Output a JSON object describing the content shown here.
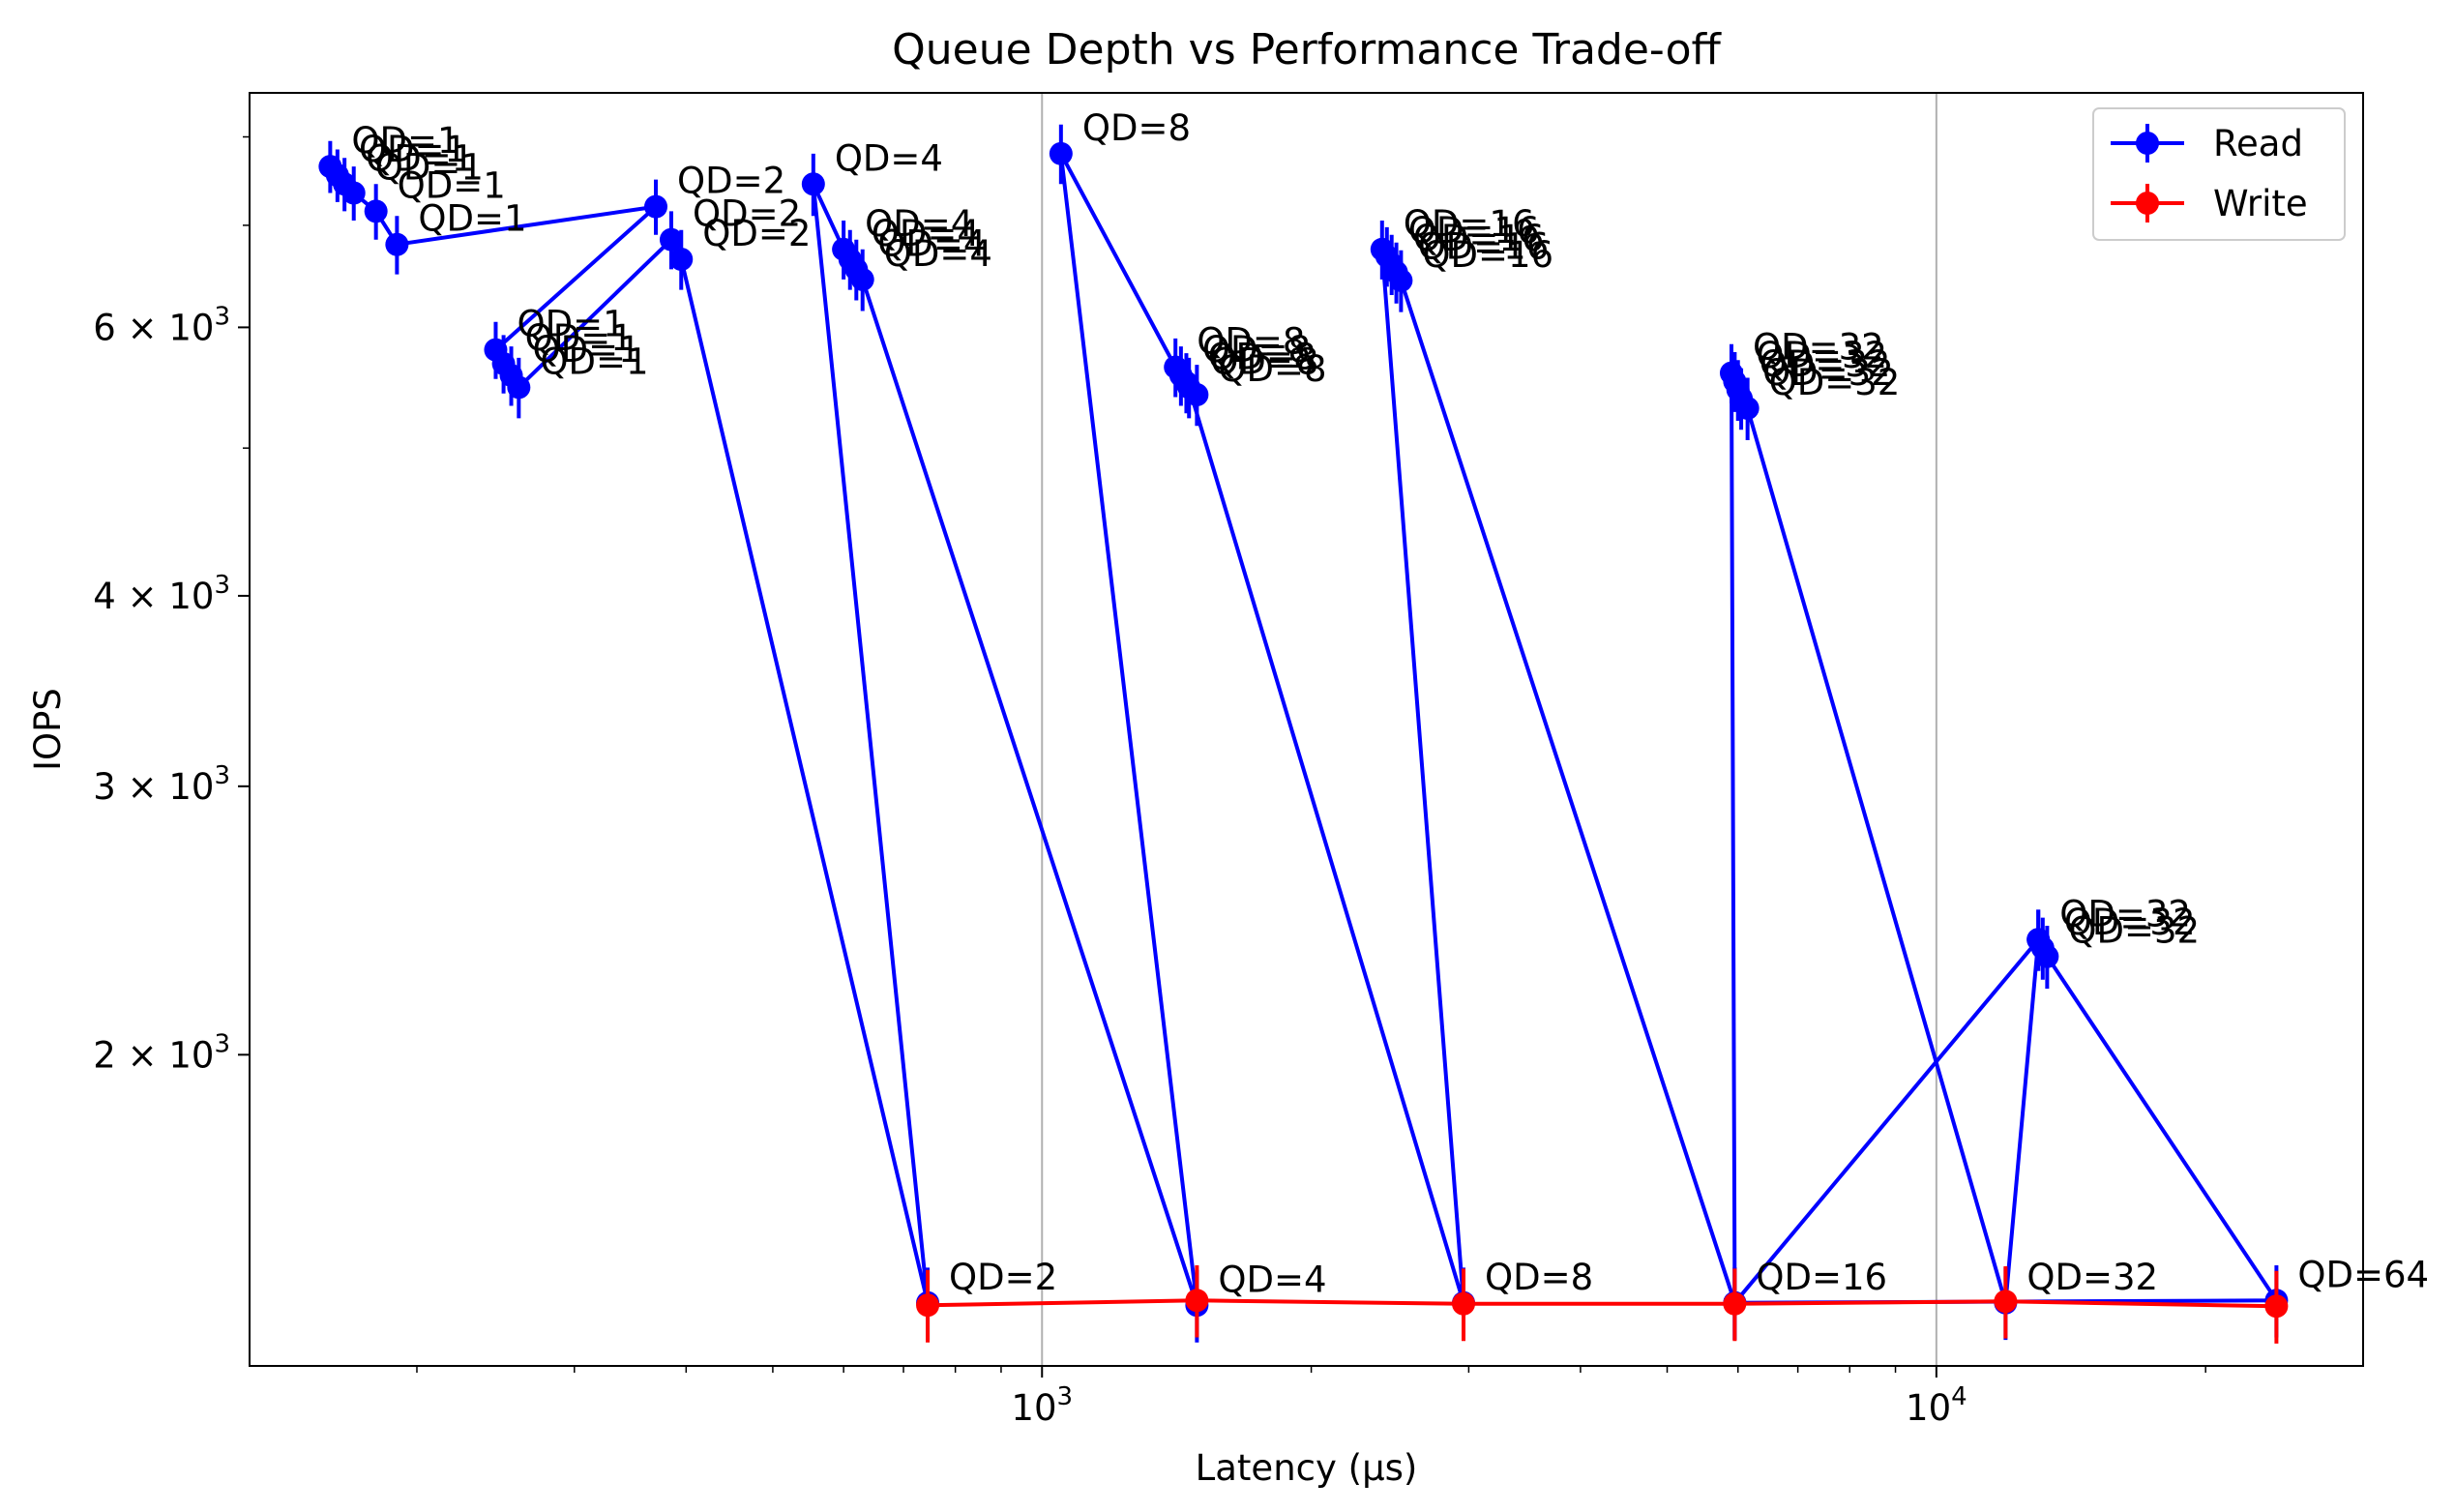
{
  "chart_data": {
    "type": "line",
    "title": "Queue Depth vs Performance Trade-off",
    "xlabel": "Latency (μs)",
    "ylabel": "IOPS",
    "xscale": "log",
    "yscale": "log",
    "xlim": [
      130,
      30000
    ],
    "ylim": [
      1250,
      8550
    ],
    "x_grid": true,
    "y_grid": false,
    "legend": "top-right",
    "x_ticks": [
      {
        "value": 1000,
        "base": "10",
        "exp": "3"
      },
      {
        "value": 10000,
        "base": "10",
        "exp": "4"
      }
    ],
    "y_ticks": [
      {
        "value": 2000,
        "mant": "2",
        "base": "10",
        "exp": "3"
      },
      {
        "value": 3000,
        "mant": "3",
        "base": "10",
        "exp": "3"
      },
      {
        "value": 4000,
        "mant": "4",
        "base": "10",
        "exp": "3"
      },
      {
        "value": 6000,
        "mant": "6",
        "base": "10",
        "exp": "3"
      }
    ],
    "times_sign": "×",
    "series": [
      {
        "name": "Read",
        "color": "#0000ff",
        "points": [
          {
            "x": 160,
            "y": 7650,
            "err": 300,
            "label": "QD=1"
          },
          {
            "x": 163,
            "y": 7550,
            "err": 300,
            "label": "QD=1"
          },
          {
            "x": 166,
            "y": 7450,
            "err": 300,
            "label": "QD=1"
          },
          {
            "x": 170,
            "y": 7350,
            "err": 300,
            "label": "QD=1"
          },
          {
            "x": 180,
            "y": 7150,
            "err": 300,
            "label": "QD=1"
          },
          {
            "x": 190,
            "y": 6800,
            "err": 300,
            "label": "QD=1"
          },
          {
            "x": 370,
            "y": 7200,
            "err": 300,
            "label": "QD=2"
          },
          {
            "x": 245,
            "y": 5800,
            "err": 250,
            "label": "QD=1"
          },
          {
            "x": 250,
            "y": 5680,
            "err": 250,
            "label": "QD=1"
          },
          {
            "x": 255,
            "y": 5580,
            "err": 250,
            "label": "QD=1"
          },
          {
            "x": 260,
            "y": 5480,
            "err": 250,
            "label": "QD=1"
          },
          {
            "x": 385,
            "y": 6850,
            "err": 300,
            "label": "QD=2"
          },
          {
            "x": 395,
            "y": 6650,
            "err": 300,
            "label": "QD=2"
          },
          {
            "x": 745,
            "y": 1375,
            "err": 75,
            "label": "QD=2"
          },
          {
            "x": 555,
            "y": 7450,
            "err": 350,
            "label": "QD=4"
          },
          {
            "x": 600,
            "y": 6750,
            "err": 300,
            "label": "QD=4"
          },
          {
            "x": 610,
            "y": 6650,
            "err": 300,
            "label": "QD=4"
          },
          {
            "x": 620,
            "y": 6550,
            "err": 300,
            "label": "QD=4"
          },
          {
            "x": 630,
            "y": 6450,
            "err": 300,
            "label": "QD=4"
          },
          {
            "x": 1490,
            "y": 1370,
            "err": 75,
            "label": "QD=4"
          },
          {
            "x": 1050,
            "y": 7800,
            "err": 350,
            "label": "QD=8"
          },
          {
            "x": 1410,
            "y": 5650,
            "err": 250,
            "label": "QD=8"
          },
          {
            "x": 1430,
            "y": 5580,
            "err": 250,
            "label": "QD=8"
          },
          {
            "x": 1450,
            "y": 5520,
            "err": 250,
            "label": "QD=8"
          },
          {
            "x": 1490,
            "y": 5420,
            "err": 250,
            "label": "QD=8"
          },
          {
            "x": 1460,
            "y": 5480,
            "err": 250,
            "label": "QD=8"
          },
          {
            "x": 2960,
            "y": 1375,
            "err": 75,
            "label": "QD=8"
          },
          {
            "x": 2400,
            "y": 6750,
            "err": 300,
            "label": "QD=16"
          },
          {
            "x": 2430,
            "y": 6680,
            "err": 300,
            "label": "QD=16"
          },
          {
            "x": 2460,
            "y": 6600,
            "err": 300,
            "label": "QD=16"
          },
          {
            "x": 2490,
            "y": 6520,
            "err": 300,
            "label": "QD=16"
          },
          {
            "x": 2520,
            "y": 6440,
            "err": 300,
            "label": "QD=16"
          },
          {
            "x": 5950,
            "y": 1375,
            "err": 75,
            "label": "QD=16"
          },
          {
            "x": 5900,
            "y": 5600,
            "err": 250,
            "label": "QD=32"
          },
          {
            "x": 5950,
            "y": 5530,
            "err": 250,
            "label": "QD=32"
          },
          {
            "x": 6000,
            "y": 5460,
            "err": 250,
            "label": "QD=32"
          },
          {
            "x": 6050,
            "y": 5390,
            "err": 250,
            "label": "QD=32"
          },
          {
            "x": 6150,
            "y": 5310,
            "err": 250,
            "label": "QD=32"
          },
          {
            "x": 11950,
            "y": 1375,
            "err": 75,
            "label": "QD=32"
          },
          {
            "x": 13000,
            "y": 2380,
            "err": 110,
            "label": "QD=32"
          },
          {
            "x": 13150,
            "y": 2350,
            "err": 110,
            "label": "QD=32"
          },
          {
            "x": 13300,
            "y": 2320,
            "err": 110,
            "label": "QD=32"
          },
          {
            "x": 24000,
            "y": 1380,
            "err": 75,
            "label": "QD=64"
          },
          {
            "x": 5950,
            "y": 1375,
            "err": 75,
            "label": ""
          },
          {
            "x": 13000,
            "y": 2380,
            "err": 110,
            "label": ""
          }
        ]
      },
      {
        "name": "Write",
        "color": "#ff0000",
        "points": [
          {
            "x": 745,
            "y": 1370,
            "err": 75
          },
          {
            "x": 1490,
            "y": 1380,
            "err": 75
          },
          {
            "x": 2960,
            "y": 1373,
            "err": 75
          },
          {
            "x": 5950,
            "y": 1373,
            "err": 75
          },
          {
            "x": 11950,
            "y": 1378,
            "err": 75
          },
          {
            "x": 24000,
            "y": 1368,
            "err": 75
          }
        ]
      }
    ]
  }
}
